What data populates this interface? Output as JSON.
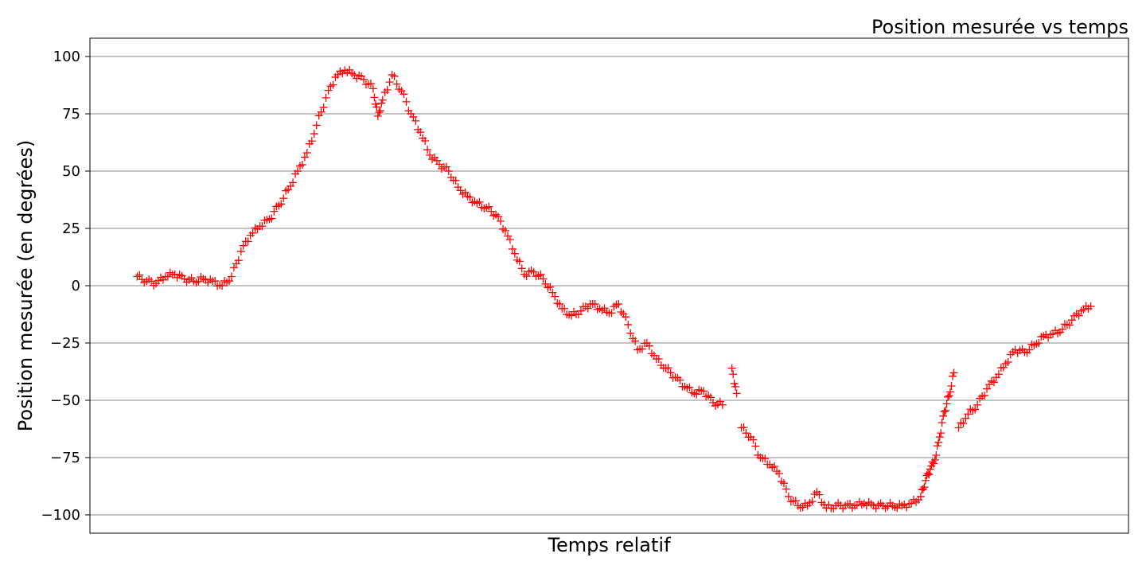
{
  "chart_data": {
    "type": "scatter",
    "title": "Position mesurée vs temps",
    "xlabel": "Temps relatif",
    "ylabel": "Position mesurée (en degrées)",
    "ylim": [
      -108,
      108
    ],
    "xlim": [
      -0.05,
      1.05
    ],
    "yticks": [
      100,
      75,
      50,
      25,
      0,
      -25,
      -50,
      -75,
      -100
    ],
    "ytick_labels": [
      "100",
      "75",
      "50",
      "25",
      "0",
      "−25",
      "−50",
      "−75",
      "−100"
    ],
    "grid": "horizontal",
    "marker": "+",
    "colors": {
      "marker": "#ff0000",
      "grid": "#b0b0b0",
      "frame": "#000000"
    },
    "series": [
      {
        "points": [
          [
            0.0,
            4
          ],
          [
            0.01,
            2
          ],
          [
            0.02,
            1
          ],
          [
            0.03,
            4
          ],
          [
            0.04,
            5
          ],
          [
            0.05,
            3
          ],
          [
            0.06,
            2
          ],
          [
            0.07,
            3
          ],
          [
            0.08,
            2
          ],
          [
            0.09,
            0
          ],
          [
            0.1,
            4
          ],
          [
            0.11,
            15
          ],
          [
            0.12,
            22
          ],
          [
            0.13,
            26
          ],
          [
            0.14,
            29
          ],
          [
            0.15,
            35
          ],
          [
            0.16,
            42
          ],
          [
            0.17,
            50
          ],
          [
            0.18,
            58
          ],
          [
            0.19,
            70
          ],
          [
            0.2,
            82
          ],
          [
            0.21,
            91
          ],
          [
            0.22,
            94
          ],
          [
            0.23,
            92
          ],
          [
            0.24,
            90
          ],
          [
            0.25,
            86
          ],
          [
            0.255,
            74
          ],
          [
            0.26,
            81
          ],
          [
            0.27,
            92
          ],
          [
            0.28,
            85
          ],
          [
            0.29,
            75
          ],
          [
            0.3,
            67
          ],
          [
            0.31,
            57
          ],
          [
            0.32,
            53
          ],
          [
            0.33,
            50
          ],
          [
            0.34,
            43
          ],
          [
            0.35,
            39
          ],
          [
            0.36,
            36
          ],
          [
            0.37,
            34
          ],
          [
            0.38,
            31
          ],
          [
            0.39,
            24
          ],
          [
            0.4,
            14
          ],
          [
            0.41,
            5
          ],
          [
            0.42,
            6
          ],
          [
            0.43,
            3
          ],
          [
            0.44,
            -3
          ],
          [
            0.45,
            -10
          ],
          [
            0.46,
            -13
          ],
          [
            0.47,
            -11
          ],
          [
            0.48,
            -8
          ],
          [
            0.49,
            -10
          ],
          [
            0.5,
            -12
          ],
          [
            0.51,
            -8
          ],
          [
            0.52,
            -17
          ],
          [
            0.53,
            -28
          ],
          [
            0.54,
            -25
          ],
          [
            0.55,
            -32
          ],
          [
            0.56,
            -36
          ],
          [
            0.57,
            -40
          ],
          [
            0.58,
            -44
          ],
          [
            0.59,
            -47
          ],
          [
            0.6,
            -46
          ],
          [
            0.61,
            -51
          ],
          [
            0.62,
            -52
          ],
          [
            0.63,
            -36
          ],
          [
            0.635,
            -47
          ],
          [
            0.64,
            -62
          ],
          [
            0.65,
            -66
          ],
          [
            0.66,
            -75
          ],
          [
            0.67,
            -78
          ],
          [
            0.68,
            -82
          ],
          [
            0.69,
            -92
          ],
          [
            0.7,
            -96
          ],
          [
            0.71,
            -96
          ],
          [
            0.72,
            -90
          ],
          [
            0.73,
            -97
          ],
          [
            0.74,
            -96
          ],
          [
            0.75,
            -96
          ],
          [
            0.76,
            -96
          ],
          [
            0.77,
            -95
          ],
          [
            0.78,
            -96
          ],
          [
            0.79,
            -96
          ],
          [
            0.8,
            -96
          ],
          [
            0.81,
            -96
          ],
          [
            0.82,
            -95
          ],
          [
            0.83,
            -92
          ],
          [
            0.835,
            -85
          ],
          [
            0.84,
            -80
          ],
          [
            0.845,
            -76
          ],
          [
            0.85,
            -66
          ],
          [
            0.855,
            -55
          ],
          [
            0.86,
            -48
          ],
          [
            0.865,
            -38
          ],
          [
            0.87,
            -62
          ],
          [
            0.88,
            -56
          ],
          [
            0.89,
            -52
          ],
          [
            0.9,
            -45
          ],
          [
            0.91,
            -40
          ],
          [
            0.92,
            -34
          ],
          [
            0.93,
            -28
          ],
          [
            0.94,
            -29
          ],
          [
            0.95,
            -26
          ],
          [
            0.96,
            -22
          ],
          [
            0.97,
            -21
          ],
          [
            0.98,
            -19
          ],
          [
            0.99,
            -15
          ],
          [
            1.0,
            -11
          ],
          [
            1.01,
            -9
          ]
        ]
      }
    ],
    "series_extra_note": ""
  }
}
